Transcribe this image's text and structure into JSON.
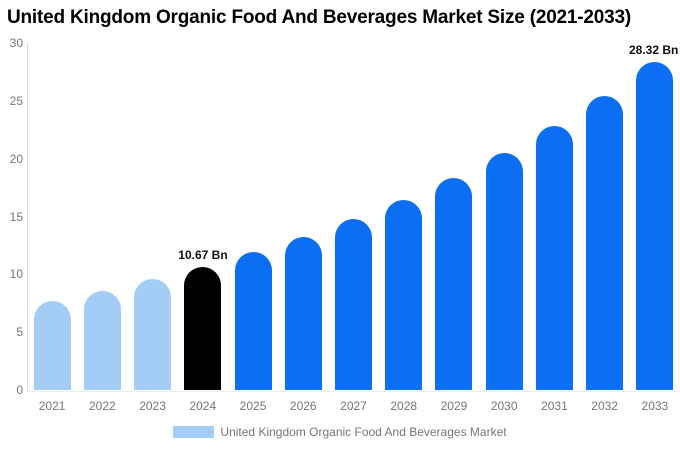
{
  "title": "United Kingdom Organic Food And Beverages Market Size (2021-2033)",
  "legend": {
    "label": "United Kingdom Organic Food And Beverages Market",
    "swatch_color": "#A4CDF5"
  },
  "chart_data": {
    "type": "bar",
    "title": "United Kingdom Organic Food And Beverages Market Size (2021-2033)",
    "unit": "Bn",
    "categories": [
      "2021",
      "2022",
      "2023",
      "2024",
      "2025",
      "2026",
      "2027",
      "2028",
      "2029",
      "2030",
      "2031",
      "2032",
      "2033"
    ],
    "values": [
      7.71,
      8.59,
      9.57,
      10.67,
      11.89,
      13.25,
      14.77,
      16.46,
      18.35,
      20.45,
      22.79,
      25.4,
      28.32
    ],
    "bar_colors": [
      "#A4CDF5",
      "#A4CDF5",
      "#A4CDF5",
      "#000000",
      "#0C6EF2",
      "#0C6EF2",
      "#0C6EF2",
      "#0C6EF2",
      "#0C6EF2",
      "#0C6EF2",
      "#0C6EF2",
      "#0C6EF2",
      "#0C6EF2"
    ],
    "annotations": [
      {
        "category": "2024",
        "text": "10.67 Bn"
      },
      {
        "category": "2033",
        "text": "28.32 Bn"
      }
    ],
    "ylim": [
      0,
      30
    ],
    "yticks": [
      0,
      5,
      10,
      15,
      20,
      25,
      30
    ],
    "grid": false,
    "legend_position": "bottom",
    "xlabel": "",
    "ylabel": ""
  },
  "colors": {
    "historical": "#A4CDF5",
    "base_year": "#000000",
    "forecast": "#0C6EF2",
    "axis_line": "#DCDCDC",
    "tick_text": "#757575",
    "annotation_text": "#111111"
  }
}
